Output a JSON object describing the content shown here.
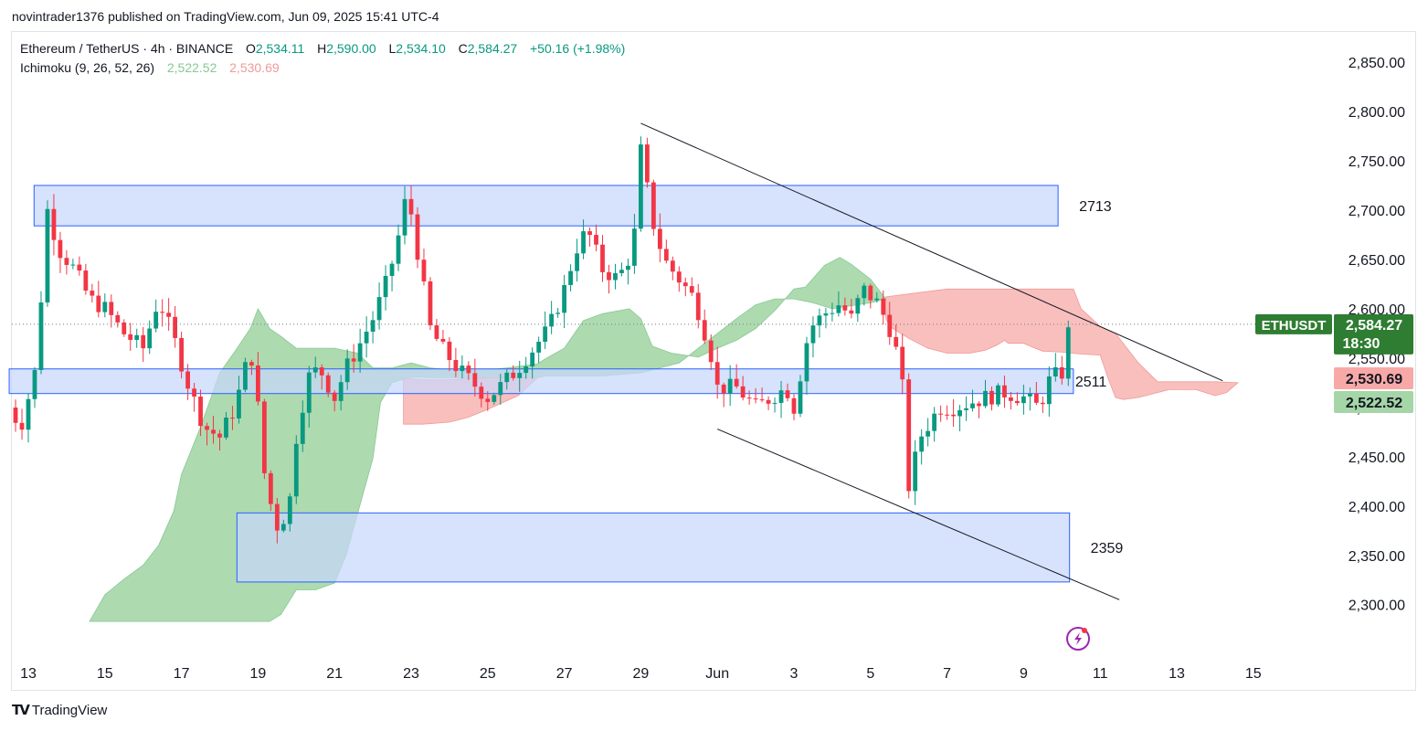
{
  "header": {
    "published": "novintrader1376 published on TradingView.com, Jun 09, 2025 15:41 UTC-4"
  },
  "legend": {
    "symbol": "Ethereum / TetherUS · 4h · BINANCE",
    "o_label": "O",
    "o": "2,534.11",
    "h_label": "H",
    "h": "2,590.00",
    "l_label": "L",
    "l": "2,534.10",
    "c_label": "C",
    "c": "2,584.27",
    "change": "+50.16 (+1.98%)",
    "indicator": "Ichimoku (9, 26, 52, 26)",
    "ind_v1": "2,522.52",
    "ind_v2": "2,530.69"
  },
  "footer": {
    "brand": "TradingView"
  },
  "colors": {
    "up": "#089981",
    "down": "#f23645",
    "cloud_green": "#a5d6a7",
    "cloud_red": "#f7a9a7",
    "zone_fill": "#c8d7fb",
    "zone_stroke": "#2962ff"
  },
  "chart_data": {
    "type": "candlestick",
    "symbol": "ETHUSDT",
    "ylim": [
      2260,
      2880
    ],
    "y_ticks": [
      "2,300.00",
      "2,350.00",
      "2,400.00",
      "2,450.00",
      "2,500.00",
      "2,550.00",
      "2,600.00",
      "2,650.00",
      "2,700.00",
      "2,750.00",
      "2,800.00",
      "2,850.00"
    ],
    "y_tick_values": [
      2300,
      2350,
      2400,
      2450,
      2500,
      2550,
      2600,
      2650,
      2700,
      2750,
      2800,
      2850
    ],
    "x_ticks": [
      "13",
      "15",
      "17",
      "19",
      "21",
      "23",
      "25",
      "27",
      "29",
      "Jun",
      "3",
      "5",
      "7",
      "9",
      "11",
      "13",
      "15"
    ],
    "x_tick_days": [
      0,
      2,
      4,
      6,
      8,
      10,
      12,
      14,
      16,
      18,
      20,
      22,
      24,
      26,
      28,
      30,
      32
    ],
    "price_labels": {
      "last": {
        "symbol": "ETHUSDT",
        "value": "2,584.27",
        "countdown": "18:30",
        "level": 2584.27
      },
      "span_a": {
        "value": "2,530.69",
        "level": 2530.69
      },
      "span_b": {
        "value": "2,522.52",
        "level": 2522.52
      }
    },
    "zones": [
      {
        "label": "2713",
        "top": 2725,
        "bottom": 2684,
        "start_day": 0.15,
        "end_day": 26.9
      },
      {
        "label": "2511",
        "top": 2539,
        "bottom": 2514,
        "start_day": -0.5,
        "end_day": 27.3
      },
      {
        "label": "2359",
        "top": 2393,
        "bottom": 2323,
        "start_day": 5.45,
        "end_day": 27.2
      }
    ],
    "trendlines": [
      {
        "name": "upper",
        "x1": 16.0,
        "y1": 2788,
        "x2": 31.2,
        "y2": 2527
      },
      {
        "name": "lower",
        "x1": 18.0,
        "y1": 2478,
        "x2": 28.5,
        "y2": 2305
      }
    ],
    "cloud_green": {
      "upper": [
        [
          1.6,
          2283
        ],
        [
          2,
          2310
        ],
        [
          2.5,
          2326
        ],
        [
          3,
          2340
        ],
        [
          3.4,
          2360
        ],
        [
          3.8,
          2395
        ],
        [
          4.0,
          2432
        ],
        [
          4.5,
          2480
        ],
        [
          5.0,
          2535
        ],
        [
          5.4,
          2557
        ],
        [
          5.8,
          2580
        ],
        [
          6.0,
          2600
        ],
        [
          6.3,
          2580
        ],
        [
          6.6,
          2572
        ],
        [
          7,
          2560
        ],
        [
          8,
          2560
        ],
        [
          8.6,
          2555
        ],
        [
          9,
          2540
        ],
        [
          9.5,
          2540
        ],
        [
          10,
          2545
        ],
        [
          10.5,
          2540
        ],
        [
          11,
          2538
        ],
        [
          12,
          2538
        ],
        [
          12.5,
          2540
        ],
        [
          13.3,
          2544
        ],
        [
          13.5,
          2549
        ],
        [
          14,
          2560
        ],
        [
          14.5,
          2588
        ],
        [
          15,
          2595
        ],
        [
          15.7,
          2600
        ],
        [
          16,
          2590
        ],
        [
          16.3,
          2562
        ],
        [
          16.8,
          2555
        ],
        [
          17.5,
          2551
        ],
        [
          18,
          2560
        ],
        [
          18.5,
          2568
        ],
        [
          19,
          2580
        ],
        [
          19.5,
          2598
        ],
        [
          20,
          2620
        ],
        [
          20.3,
          2622
        ],
        [
          20.8,
          2644
        ],
        [
          21.2,
          2652
        ],
        [
          21.5,
          2645
        ],
        [
          22,
          2630
        ],
        [
          22.4,
          2610
        ]
      ],
      "lower": [
        [
          22.4,
          2610
        ],
        [
          22,
          2606
        ],
        [
          21.5,
          2603
        ],
        [
          21,
          2600
        ],
        [
          20.5,
          2606
        ],
        [
          20,
          2610
        ],
        [
          19.5,
          2610
        ],
        [
          19,
          2604
        ],
        [
          18.5,
          2590
        ],
        [
          18,
          2575
        ],
        [
          17.5,
          2560
        ],
        [
          17,
          2545
        ],
        [
          16.5,
          2540
        ],
        [
          16,
          2535
        ],
        [
          15,
          2532
        ],
        [
          14.5,
          2532
        ],
        [
          14,
          2532
        ],
        [
          13.5,
          2532
        ],
        [
          13.3,
          2530
        ],
        [
          12.5,
          2530
        ],
        [
          11,
          2530
        ],
        [
          10.5,
          2530
        ],
        [
          10,
          2531
        ],
        [
          9.5,
          2525
        ],
        [
          9.2,
          2505
        ],
        [
          9,
          2448
        ],
        [
          8.6,
          2392
        ],
        [
          8.3,
          2350
        ],
        [
          8,
          2322
        ],
        [
          7.5,
          2315
        ],
        [
          7,
          2315
        ],
        [
          6.6,
          2290
        ],
        [
          6.3,
          2283
        ],
        [
          1.6,
          2283
        ]
      ]
    },
    "cloud_red": [
      {
        "upper": [
          [
            9.8,
            2530
          ],
          [
            10.3,
            2528
          ],
          [
            11,
            2528
          ],
          [
            12,
            2530
          ],
          [
            13,
            2530
          ],
          [
            13.3,
            2530
          ]
        ],
        "lower": [
          [
            13.3,
            2530
          ],
          [
            12.8,
            2512
          ],
          [
            12,
            2498
          ],
          [
            11.5,
            2490
          ],
          [
            11,
            2485
          ],
          [
            10.3,
            2483
          ],
          [
            9.8,
            2483
          ]
        ]
      },
      {
        "upper": [
          [
            22.4,
            2612
          ],
          [
            23,
            2615
          ],
          [
            24,
            2620
          ],
          [
            25,
            2620
          ],
          [
            26,
            2620
          ],
          [
            27.3,
            2620
          ],
          [
            27.5,
            2600
          ],
          [
            28,
            2582
          ],
          [
            28.4,
            2575
          ],
          [
            29,
            2545
          ],
          [
            29.5,
            2526
          ],
          [
            30,
            2526
          ],
          [
            31,
            2526
          ],
          [
            31.6,
            2525
          ]
        ],
        "lower": [
          [
            31.6,
            2525
          ],
          [
            31.3,
            2515
          ],
          [
            31.0,
            2512
          ],
          [
            30.5,
            2518
          ],
          [
            29.8,
            2518
          ],
          [
            29.5,
            2515
          ],
          [
            29.0,
            2510
          ],
          [
            28.6,
            2508
          ],
          [
            28.4,
            2510
          ],
          [
            28.2,
            2530
          ],
          [
            28,
            2553
          ],
          [
            27.5,
            2554
          ],
          [
            27,
            2556
          ],
          [
            26.5,
            2557
          ],
          [
            26.3,
            2560
          ],
          [
            26,
            2565
          ],
          [
            25.6,
            2565
          ],
          [
            25.5,
            2568
          ],
          [
            25.3,
            2563
          ],
          [
            25.0,
            2558
          ],
          [
            24.6,
            2555
          ],
          [
            24,
            2555
          ],
          [
            23.5,
            2560
          ],
          [
            23.0,
            2570
          ],
          [
            22.5,
            2582
          ],
          [
            22.4,
            2590
          ]
        ]
      }
    ],
    "path": [
      [
        -0.5,
        2500
      ],
      [
        -0.2,
        2480
      ],
      [
        0.2,
        2540
      ],
      [
        0.5,
        2700
      ],
      [
        0.8,
        2660
      ],
      [
        1.2,
        2640
      ],
      [
        1.6,
        2610
      ],
      [
        2,
        2600
      ],
      [
        2.5,
        2575
      ],
      [
        3,
        2560
      ],
      [
        3.4,
        2610
      ],
      [
        3.8,
        2570
      ],
      [
        4.2,
        2520
      ],
      [
        4.6,
        2480
      ],
      [
        5,
        2470
      ],
      [
        5.4,
        2500
      ],
      [
        5.8,
        2560
      ],
      [
        6.0,
        2500
      ],
      [
        6.2,
        2420
      ],
      [
        6.5,
        2380
      ],
      [
        6.8,
        2395
      ],
      [
        7,
        2470
      ],
      [
        7.3,
        2530
      ],
      [
        7.6,
        2540
      ],
      [
        8,
        2510
      ],
      [
        8.3,
        2540
      ],
      [
        8.6,
        2560
      ],
      [
        9.0,
        2590
      ],
      [
        9.3,
        2620
      ],
      [
        9.6,
        2660
      ],
      [
        9.9,
        2720
      ],
      [
        10.2,
        2650
      ],
      [
        10.5,
        2580
      ],
      [
        10.8,
        2560
      ],
      [
        11.2,
        2540
      ],
      [
        11.6,
        2525
      ],
      [
        12,
        2510
      ],
      [
        12.3,
        2520
      ],
      [
        12.8,
        2540
      ],
      [
        13.2,
        2560
      ],
      [
        13.6,
        2580
      ],
      [
        14,
        2620
      ],
      [
        14.3,
        2660
      ],
      [
        14.6,
        2680
      ],
      [
        15,
        2640
      ],
      [
        15.4,
        2630
      ],
      [
        15.8,
        2660
      ],
      [
        16,
        2760
      ],
      [
        16.3,
        2690
      ],
      [
        16.6,
        2650
      ],
      [
        17,
        2630
      ],
      [
        17.4,
        2610
      ],
      [
        17.8,
        2560
      ],
      [
        18,
        2520
      ],
      [
        18.5,
        2520
      ],
      [
        19,
        2500
      ],
      [
        19.4,
        2510
      ],
      [
        19.8,
        2520
      ],
      [
        20,
        2500
      ],
      [
        20.4,
        2580
      ],
      [
        20.8,
        2595
      ],
      [
        21.2,
        2605
      ],
      [
        21.5,
        2590
      ],
      [
        21.8,
        2620
      ],
      [
        22.2,
        2605
      ],
      [
        22.5,
        2580
      ],
      [
        22.8,
        2540
      ],
      [
        23.0,
        2420
      ],
      [
        23.3,
        2470
      ],
      [
        23.8,
        2500
      ],
      [
        24.2,
        2500
      ],
      [
        24.6,
        2505
      ],
      [
        25,
        2510
      ],
      [
        25.5,
        2515
      ],
      [
        26,
        2510
      ],
      [
        26.4,
        2500
      ],
      [
        26.7,
        2530
      ],
      [
        27.0,
        2535
      ],
      [
        27.2,
        2584
      ]
    ]
  }
}
